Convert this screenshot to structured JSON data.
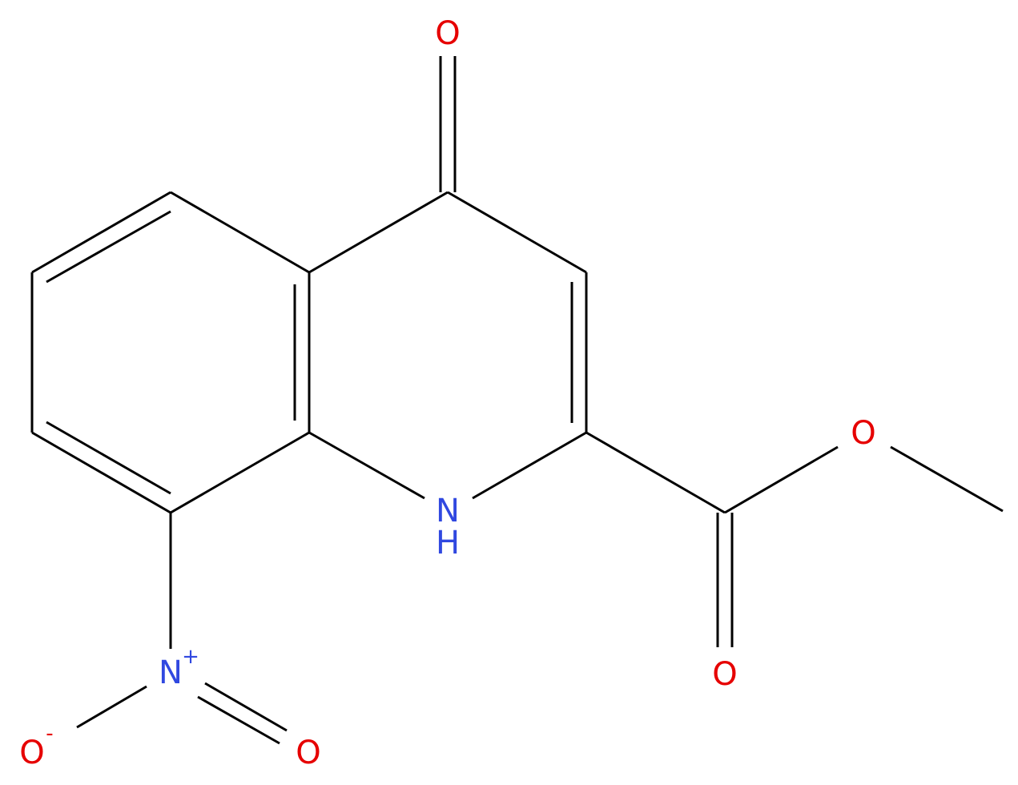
{
  "atoms": [
    {
      "symbol": "O"
    },
    {
      "symbol": "N",
      "hydrogen": "H"
    },
    {
      "symbol": "O"
    },
    {
      "symbol": "O"
    },
    {
      "symbol": "N",
      "charge": "+"
    },
    {
      "symbol": "O",
      "charge": "-"
    },
    {
      "symbol": "O"
    }
  ]
}
